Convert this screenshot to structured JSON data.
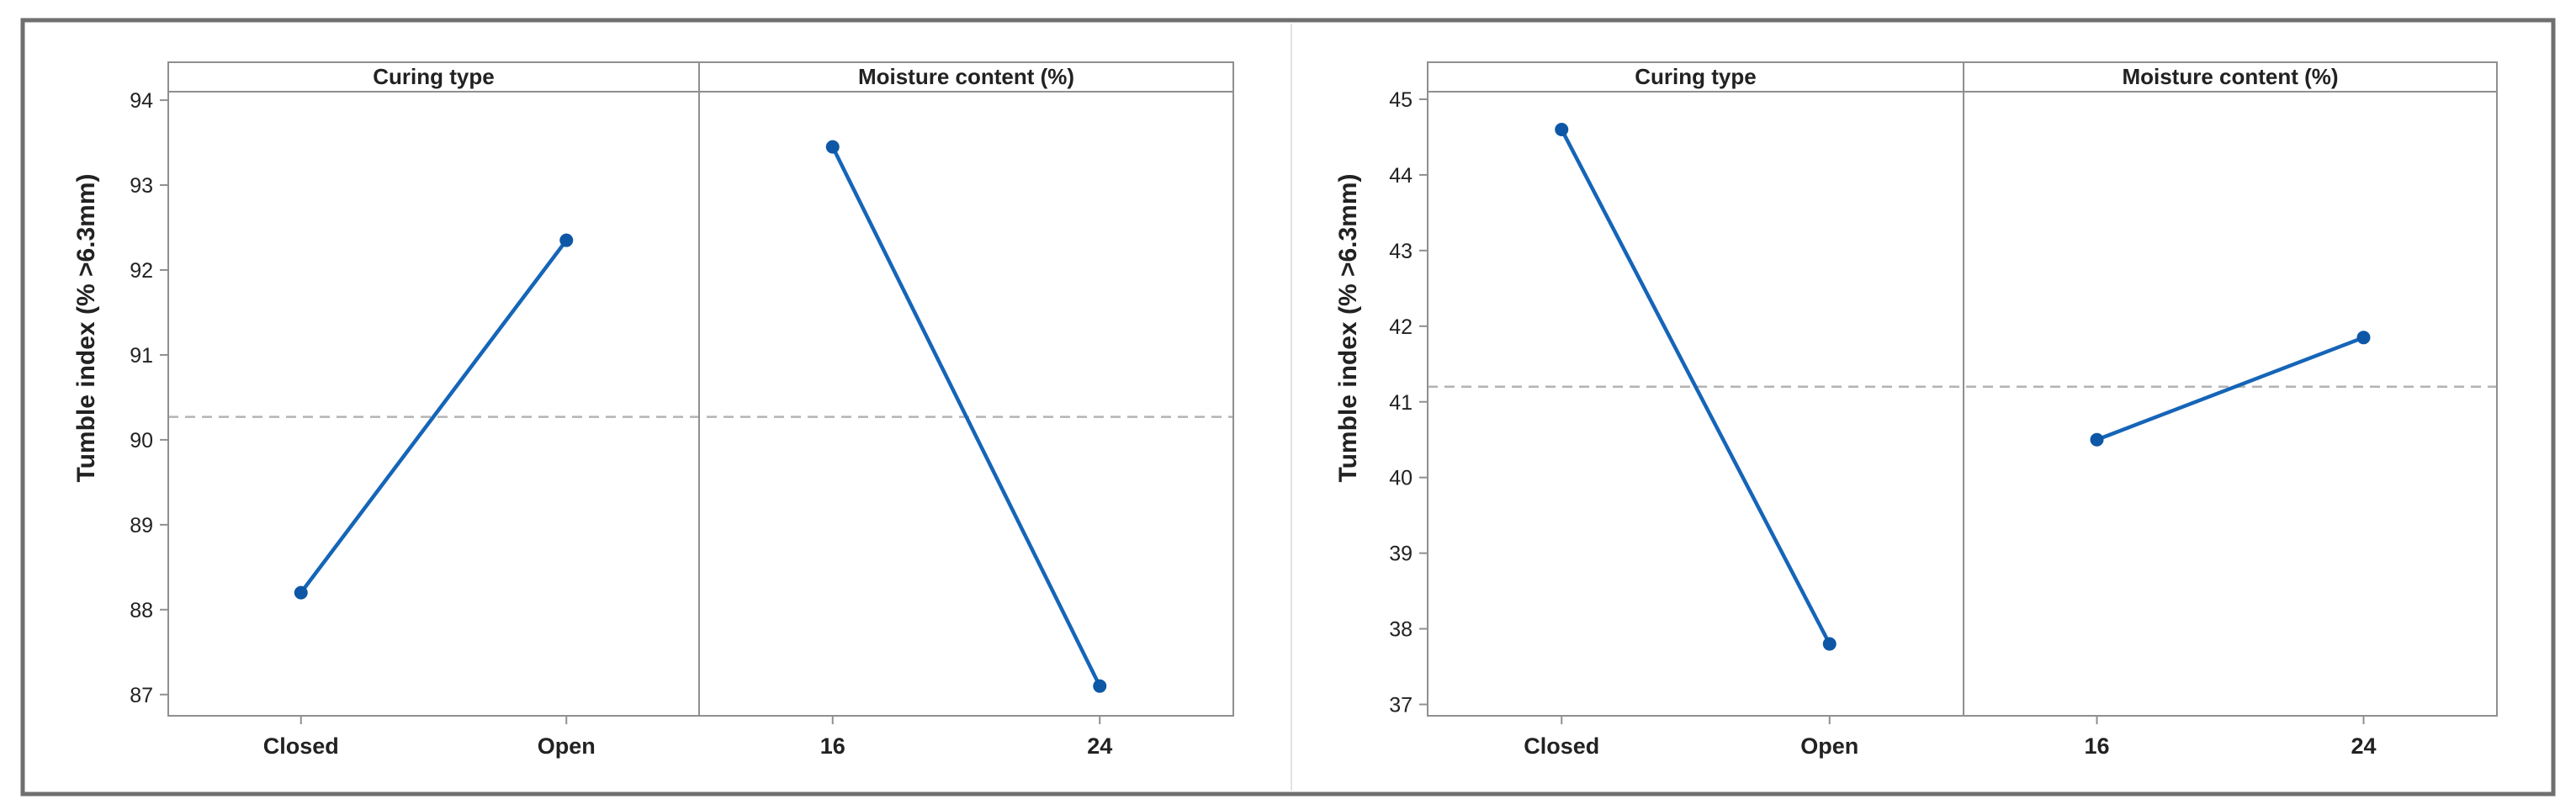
{
  "colors": {
    "line": "#1565b8",
    "marker": "#0d57a6",
    "mean": "#b3b3b3",
    "frame": "#8f8f8f",
    "border": "#6f6f6f"
  },
  "chart_data": [
    {
      "type": "line",
      "ylabel": "Tumble index (% >6.3mm)",
      "ylim": [
        86.75,
        94.1
      ],
      "yticks": [
        87,
        88,
        89,
        90,
        91,
        92,
        93,
        94
      ],
      "mean": 90.27,
      "grid": false,
      "panels": [
        {
          "title": "Curing type",
          "categories": [
            "Closed",
            "Open"
          ],
          "values": [
            88.2,
            92.35
          ]
        },
        {
          "title": "Moisture content (%)",
          "categories": [
            "16",
            "24"
          ],
          "values": [
            93.45,
            87.1
          ]
        }
      ]
    },
    {
      "type": "line",
      "ylabel": "Tumble index (% >6.3mm)",
      "ylim": [
        36.85,
        45.1
      ],
      "yticks": [
        37,
        38,
        39,
        40,
        41,
        42,
        43,
        44,
        45
      ],
      "mean": 41.2,
      "grid": false,
      "panels": [
        {
          "title": "Curing type",
          "categories": [
            "Closed",
            "Open"
          ],
          "values": [
            44.6,
            37.8
          ]
        },
        {
          "title": "Moisture content (%)",
          "categories": [
            "16",
            "24"
          ],
          "values": [
            40.5,
            41.85
          ]
        }
      ]
    }
  ]
}
